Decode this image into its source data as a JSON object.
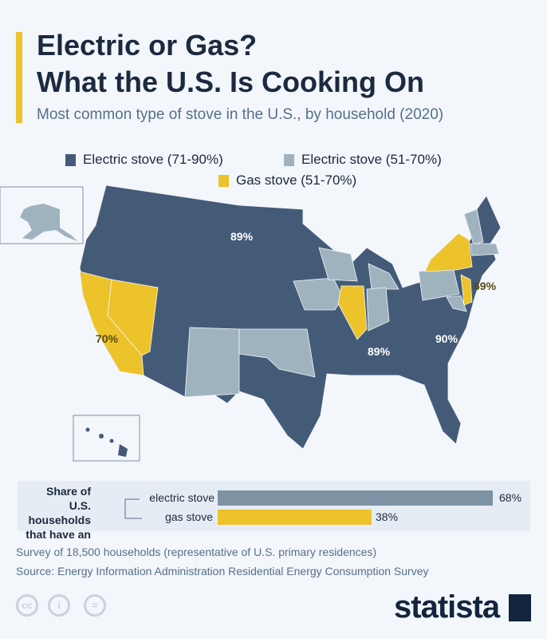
{
  "header": {
    "title_line1": "Electric or Gas?",
    "title_line2": "What the U.S. Is Cooking On",
    "subtitle": "Most common type of stove in the U.S., by household (2020)"
  },
  "legend": [
    {
      "label": "Electric stove (71-90%)",
      "color": "#445b78"
    },
    {
      "label": "Electric stove (51-70%)",
      "color": "#9fb3bf"
    },
    {
      "label": "Gas stove (51-70%)",
      "color": "#ecc32b"
    }
  ],
  "map_labels": {
    "north_dakota": "89%",
    "california": "70%",
    "new_jersey": "69%",
    "tennessee": "89%",
    "north_carolina": "90%"
  },
  "share_panel": {
    "heading": "Share of U.S. households that have an",
    "bars": [
      {
        "label": "electric stove",
        "value": 68,
        "display": "68%",
        "color": "#7d93a3"
      },
      {
        "label": "gas stove",
        "value": 38,
        "display": "38%",
        "color": "#ecc32b"
      }
    ]
  },
  "footer": {
    "note": "Survey of 18,500 households (representative of U.S. primary residences)",
    "source": "Source: Energy Information Administration Residential Energy Consumption Survey",
    "brand": "statista",
    "license_icons": [
      "cc-icon",
      "by-icon",
      "nd-icon"
    ]
  }
}
